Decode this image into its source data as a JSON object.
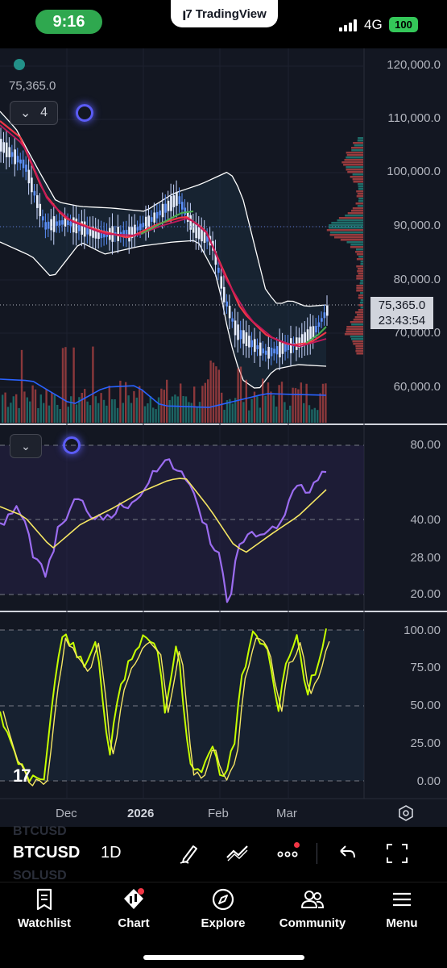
{
  "status_bar": {
    "time": "9:16",
    "app_name": "TradingView",
    "network": "4G",
    "battery": "100"
  },
  "chart": {
    "symbol": "BTCUSD",
    "interval": "1D",
    "indicator_count": "4",
    "last_value_overlay": "75,365.0",
    "current_price": "75,365.0",
    "countdown": "23:43:54",
    "price_axis": [
      "120,000.0",
      "110,000.0",
      "100,000.0",
      "90,000.0",
      "80,000.0",
      "70,000.0",
      "60,000.0"
    ],
    "rsi_axis": [
      "80.00",
      "40.00",
      "28.00",
      "20.00"
    ],
    "stoch_axis": [
      "100.00",
      "75.00",
      "50.00",
      "25.00",
      "0.00"
    ],
    "time_axis": [
      "Dec",
      "2026",
      "Feb",
      "Mar"
    ],
    "watermark": "17",
    "colors": {
      "background": "#131722",
      "up": "#26a69a",
      "down": "#ef5350",
      "candle_blue": "#5b8ff9",
      "ma_red": "#f23645",
      "ma_green": "#4caf50",
      "rsi": "#9b6cf0",
      "rsi_ma": "#f5e663",
      "stoch_k": "#c6ff00",
      "stoch_d": "#f5e663",
      "volume_ma": "#2962ff"
    }
  },
  "symbol_list_ghost": [
    "BTCUSD",
    "SOLUSD"
  ],
  "toolbar": {
    "icons": [
      "pencil-icon",
      "drawing-tool-icon",
      "more-icon",
      "undo-icon",
      "fullscreen-icon"
    ]
  },
  "nav": {
    "items": [
      {
        "label": "Watchlist",
        "icon": "watchlist-icon"
      },
      {
        "label": "Chart",
        "icon": "chart-icon"
      },
      {
        "label": "Explore",
        "icon": "compass-icon"
      },
      {
        "label": "Community",
        "icon": "community-icon"
      },
      {
        "label": "Menu",
        "icon": "menu-icon"
      }
    ]
  }
}
